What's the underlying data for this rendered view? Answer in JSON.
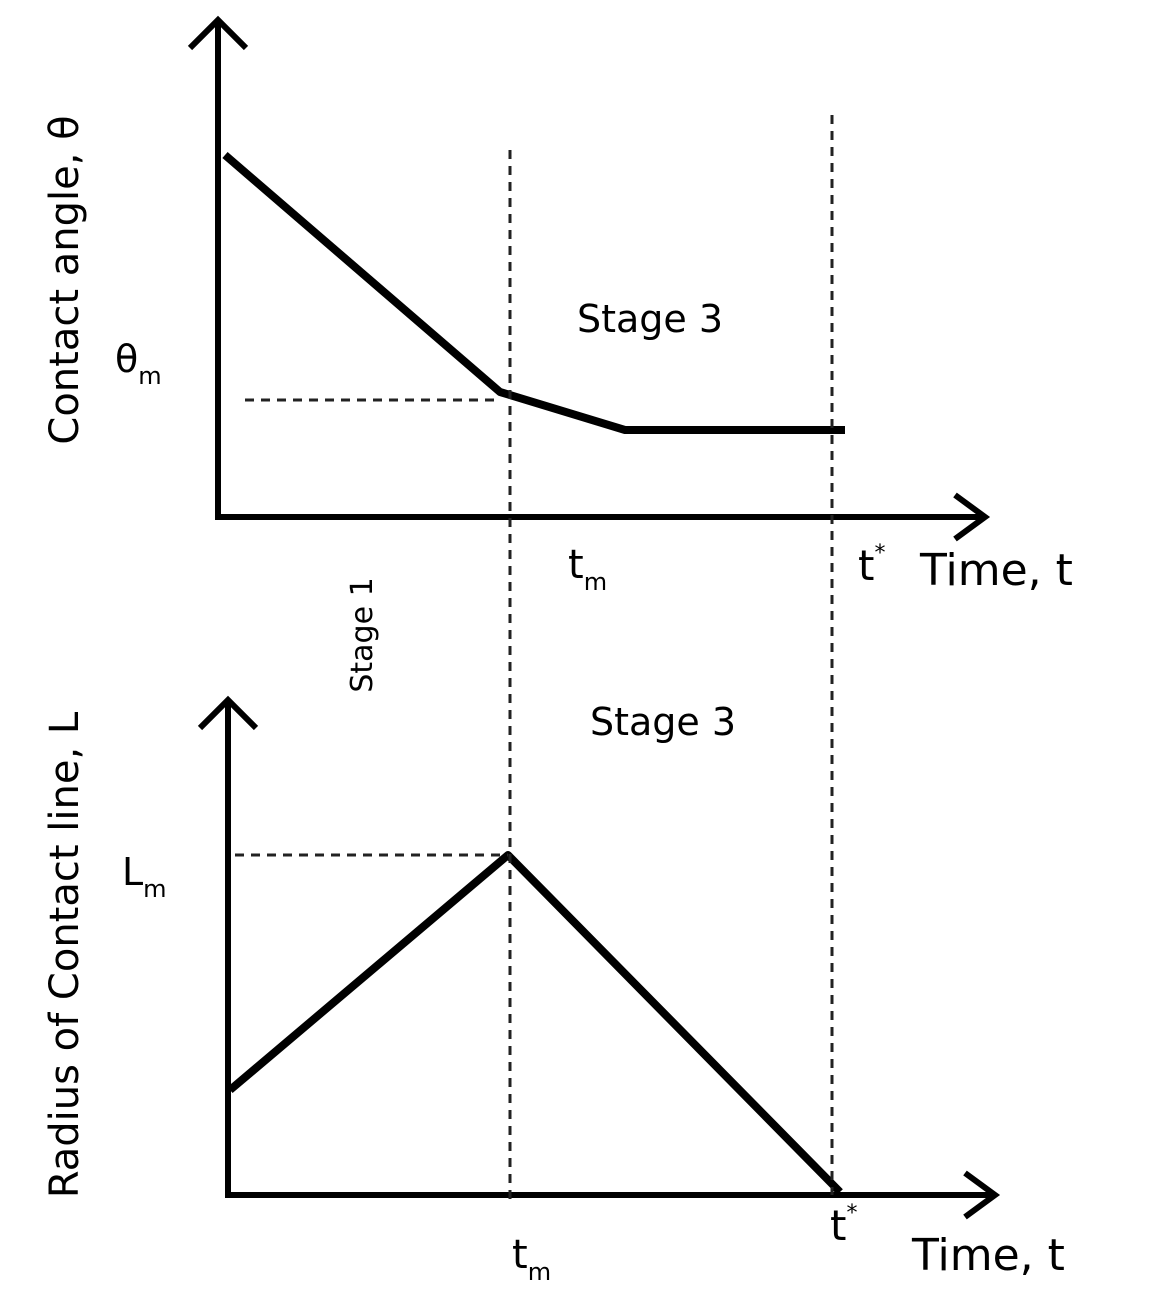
{
  "top_plot": {
    "y_label": "Contact angle, θ",
    "theta_m": {
      "base": "θ",
      "sub": "m"
    },
    "stage_label": "Stage 3",
    "t_m": {
      "base": "t",
      "sub": "m"
    },
    "t_star": {
      "base": "t",
      "sup": "*"
    },
    "x_label": "Time, t"
  },
  "stage_1": "Stage 1",
  "bottom_plot": {
    "y_label": "Radius of Contact line, L",
    "l_m": {
      "base": "L",
      "sub": "m"
    },
    "stage_label": "Stage 3",
    "t_m": {
      "base": "t",
      "sub": "m"
    },
    "t_star": {
      "base": "t",
      "sup": "*"
    },
    "x_label": "Time, t"
  }
}
